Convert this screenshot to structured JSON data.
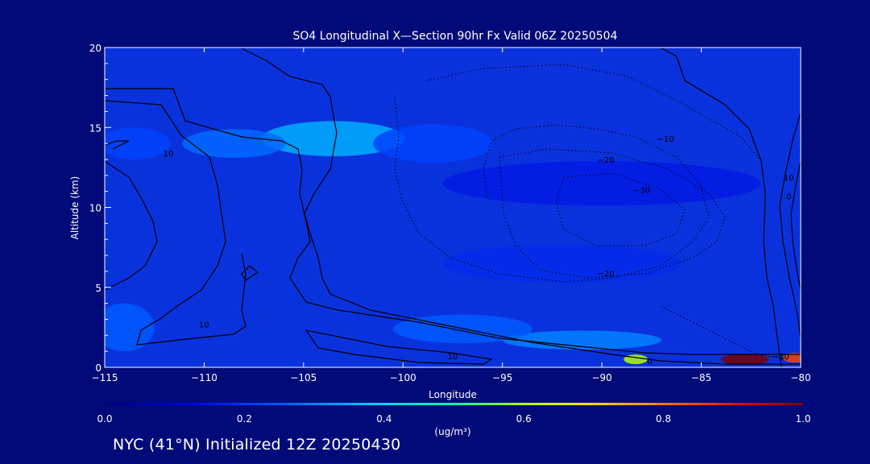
{
  "chart_data": {
    "type": "heatmap",
    "title": "SO4 Longitudinal X—Section 90hr  Fx Valid 06Z 20250504",
    "xlabel": "Longitude",
    "ylabel": "Altitude (km)",
    "xlim": [
      -115,
      -80
    ],
    "ylim": [
      0,
      20
    ],
    "x_ticks": [
      -115,
      -110,
      -105,
      -100,
      -95,
      -90,
      -85,
      -80
    ],
    "x_tick_labels": [
      "−115",
      "−110",
      "−105",
      "−100",
      "−95",
      "−90",
      "−85",
      "−80"
    ],
    "y_ticks": [
      0,
      5,
      10,
      15,
      20
    ],
    "y_tick_labels": [
      "0",
      "5",
      "10",
      "15",
      "20"
    ],
    "colorbar": {
      "label": "(ug/m³)",
      "range": [
        0.0,
        1.0
      ],
      "ticks": [
        0.0,
        0.2,
        0.4,
        0.6,
        0.8,
        1.0
      ],
      "tick_labels": [
        "0.0",
        "0.2",
        "0.4",
        "0.6",
        "0.8",
        "1.0"
      ]
    },
    "concentration_features": [
      {
        "lon": -103.5,
        "alt": 14.3,
        "value": 0.35,
        "sx": 3.6,
        "sy": 1.1
      },
      {
        "lon": -108.5,
        "alt": 14.0,
        "value": 0.27,
        "sx": 2.6,
        "sy": 0.9
      },
      {
        "lon": -98.5,
        "alt": 14.0,
        "value": 0.22,
        "sx": 3.0,
        "sy": 1.2
      },
      {
        "lon": -113.5,
        "alt": 14.0,
        "value": 0.22,
        "sx": 1.8,
        "sy": 1.0
      },
      {
        "lon": -91.0,
        "alt": 1.7,
        "value": 0.3,
        "sx": 4.0,
        "sy": 0.6
      },
      {
        "lon": -97.0,
        "alt": 2.4,
        "value": 0.25,
        "sx": 3.5,
        "sy": 0.9
      },
      {
        "lon": -114.0,
        "alt": 2.5,
        "value": 0.25,
        "sx": 1.5,
        "sy": 1.5
      },
      {
        "lon": -88.3,
        "alt": 0.5,
        "value": 0.6,
        "sx": 0.6,
        "sy": 0.3
      },
      {
        "lon": -82.8,
        "alt": 0.5,
        "value": 1.0,
        "sx": 1.2,
        "sy": 0.35
      },
      {
        "lon": -80.3,
        "alt": 0.6,
        "value": 0.85,
        "sx": 0.6,
        "sy": 0.3
      },
      {
        "lon": -92.0,
        "alt": 6.5,
        "value": 0.18,
        "sx": 6.0,
        "sy": 1.2
      },
      {
        "lon": -90.0,
        "alt": 11.5,
        "value": 0.14,
        "sx": 8.0,
        "sy": 1.4
      }
    ],
    "contour_labels": [
      {
        "text": "10",
        "lon": -111.8,
        "alt": 13.2
      },
      {
        "text": "−10",
        "lon": -86.8,
        "alt": 14.1
      },
      {
        "text": "−20",
        "lon": -89.8,
        "alt": 12.8
      },
      {
        "text": "−30",
        "lon": -88.0,
        "alt": 10.9
      },
      {
        "text": "−20",
        "lon": -89.8,
        "alt": 5.7
      },
      {
        "text": "10",
        "lon": -80.6,
        "alt": 11.7
      },
      {
        "text": "0",
        "lon": -80.6,
        "alt": 10.5
      },
      {
        "text": "−10",
        "lon": -81.0,
        "alt": 0.5
      },
      {
        "text": "0",
        "lon": -87.6,
        "alt": 0.2
      },
      {
        "text": "10",
        "lon": -110.0,
        "alt": 2.5
      },
      {
        "text": "10",
        "lon": -97.5,
        "alt": 0.5
      },
      {
        "text": "0",
        "lon": -80.0,
        "alt": 19.9
      }
    ]
  },
  "footer": {
    "init_text": "NYC (41°N) Initialized 12Z 20250430"
  },
  "colors": {
    "background": "#000a78",
    "axes": "#ffffff",
    "contour": "#000000"
  }
}
